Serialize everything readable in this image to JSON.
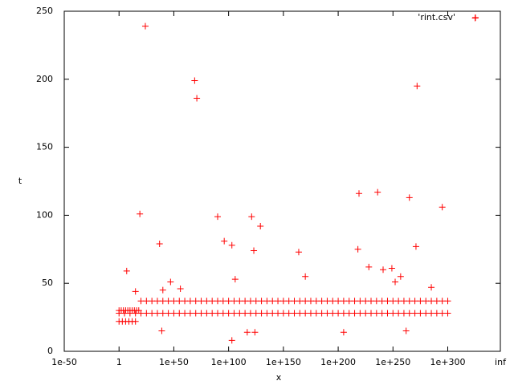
{
  "chart_data": {
    "type": "scatter",
    "x_label": "x",
    "y_label": "t",
    "xlim": [
      -50,
      348
    ],
    "ylim": [
      0,
      250
    ],
    "xticks": [
      {
        "value": -50,
        "label": "1e-50"
      },
      {
        "value": 0,
        "label": "1"
      },
      {
        "value": 50,
        "label": "1e+50"
      },
      {
        "value": 100,
        "label": "1e+100"
      },
      {
        "value": 150,
        "label": "1e+150"
      },
      {
        "value": 200,
        "label": "1e+200"
      },
      {
        "value": 250,
        "label": "1e+250"
      },
      {
        "value": 300,
        "label": "1e+300"
      },
      {
        "value": 348,
        "label": "inf"
      }
    ],
    "yticks": [
      0,
      50,
      100,
      150,
      200,
      250
    ],
    "legend": "top-right",
    "series": [
      {
        "name": "'rint.csv'",
        "color": "#ff0000",
        "x": [
          24,
          19,
          7,
          37,
          69,
          71,
          90,
          96,
          103,
          106,
          121,
          123,
          129,
          103,
          117,
          124,
          39,
          47,
          164,
          170,
          219,
          218,
          236,
          228,
          241,
          249,
          265,
          271,
          272,
          295,
          325,
          262,
          205,
          252,
          257,
          285,
          56,
          15,
          40,
          0,
          5,
          10,
          15,
          20,
          25,
          30,
          35,
          40,
          45,
          50,
          55,
          60,
          65,
          70,
          75,
          80,
          85,
          90,
          95,
          100,
          105,
          110,
          115,
          120,
          125,
          130,
          135,
          140,
          145,
          150,
          155,
          160,
          165,
          170,
          175,
          180,
          185,
          190,
          195,
          200,
          205,
          210,
          215,
          220,
          225,
          230,
          235,
          240,
          245,
          250,
          255,
          260,
          265,
          270,
          275,
          280,
          285,
          290,
          295,
          300,
          20,
          25,
          30,
          35,
          40,
          45,
          50,
          55,
          60,
          65,
          70,
          75,
          80,
          85,
          90,
          95,
          100,
          105,
          110,
          115,
          120,
          125,
          130,
          135,
          140,
          145,
          150,
          155,
          160,
          165,
          170,
          175,
          180,
          185,
          190,
          195,
          200,
          205,
          210,
          215,
          220,
          225,
          230,
          235,
          240,
          245,
          250,
          255,
          260,
          265,
          270,
          275,
          280,
          285,
          290,
          295,
          300,
          0,
          2,
          4,
          6,
          8,
          10,
          12,
          14,
          16,
          18,
          0,
          3,
          6,
          9,
          12,
          15
        ],
        "values": [
          239,
          101,
          59,
          79,
          199,
          186,
          99,
          81,
          78,
          53,
          99,
          74,
          92,
          8,
          14,
          14,
          15,
          51,
          73,
          55,
          116,
          75,
          117,
          62,
          60,
          61,
          113,
          77,
          195,
          106,
          245,
          15,
          14,
          51,
          55,
          47,
          46,
          44,
          45,
          28,
          28,
          28,
          28,
          28,
          28,
          28,
          28,
          28,
          28,
          28,
          28,
          28,
          28,
          28,
          28,
          28,
          28,
          28,
          28,
          28,
          28,
          28,
          28,
          28,
          28,
          28,
          28,
          28,
          28,
          28,
          28,
          28,
          28,
          28,
          28,
          28,
          28,
          28,
          28,
          28,
          28,
          28,
          28,
          28,
          28,
          28,
          28,
          28,
          28,
          28,
          28,
          28,
          28,
          28,
          28,
          28,
          28,
          28,
          28,
          28,
          37,
          37,
          37,
          37,
          37,
          37,
          37,
          37,
          37,
          37,
          37,
          37,
          37,
          37,
          37,
          37,
          37,
          37,
          37,
          37,
          37,
          37,
          37,
          37,
          37,
          37,
          37,
          37,
          37,
          37,
          37,
          37,
          37,
          37,
          37,
          37,
          37,
          37,
          37,
          37,
          37,
          37,
          37,
          37,
          37,
          37,
          37,
          37,
          37,
          37,
          37,
          37,
          37,
          37,
          37,
          37,
          37,
          30,
          30,
          30,
          30,
          30,
          30,
          30,
          30,
          30,
          30,
          22,
          22,
          22,
          22,
          22,
          22
        ]
      }
    ]
  }
}
